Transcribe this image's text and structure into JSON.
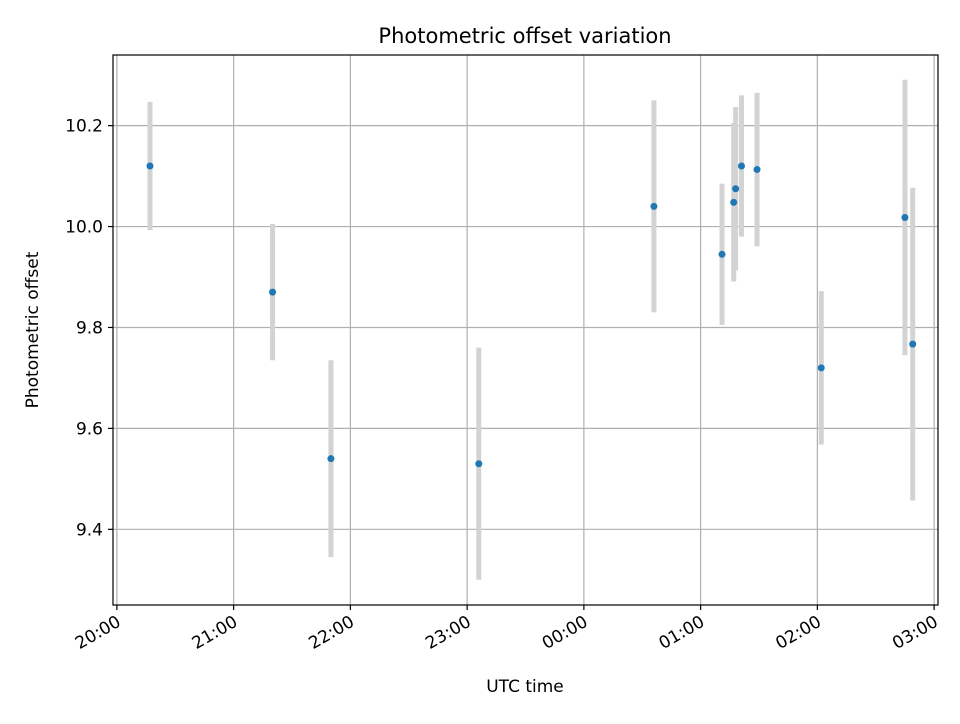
{
  "chart_data": {
    "type": "scatter",
    "title": "Photometric offset variation",
    "xlabel": "UTC time",
    "ylabel": "Photometric offset",
    "x_ticks": [
      "20:00",
      "21:00",
      "22:00",
      "23:00",
      "00:00",
      "01:00",
      "02:00",
      "03:00"
    ],
    "y_ticks": [
      "9.4",
      "9.6",
      "9.8",
      "10.0",
      "10.2"
    ],
    "x_range": [
      "19:58",
      "03:02"
    ],
    "ylim": [
      9.25,
      10.34
    ],
    "grid": true,
    "colors": {
      "marker": "#1f77b4",
      "errorbar": "#d3d3d3",
      "grid": "#b0b0b0"
    },
    "series": [
      {
        "points": [
          {
            "x": "20:17",
            "y": 10.12,
            "yerr": 0.127
          },
          {
            "x": "21:20",
            "y": 9.87,
            "yerr": 0.135
          },
          {
            "x": "21:50",
            "y": 9.54,
            "yerr": 0.195
          },
          {
            "x": "23:06",
            "y": 9.53,
            "yerr": 0.23
          },
          {
            "x": "00:36",
            "y": 10.04,
            "yerr": 0.21
          },
          {
            "x": "01:11",
            "y": 9.945,
            "yerr": 0.14
          },
          {
            "x": "01:17",
            "y": 10.048,
            "yerr": 0.157
          },
          {
            "x": "01:18",
            "y": 10.075,
            "yerr": 0.162
          },
          {
            "x": "01:21",
            "y": 10.12,
            "yerr": 0.14
          },
          {
            "x": "01:29",
            "y": 10.113,
            "yerr": 0.152
          },
          {
            "x": "02:02",
            "y": 9.72,
            "yerr": 0.152
          },
          {
            "x": "02:45",
            "y": 10.018,
            "yerr": 0.273
          },
          {
            "x": "02:49",
            "y": 9.767,
            "yerr": 0.31
          }
        ]
      }
    ]
  }
}
